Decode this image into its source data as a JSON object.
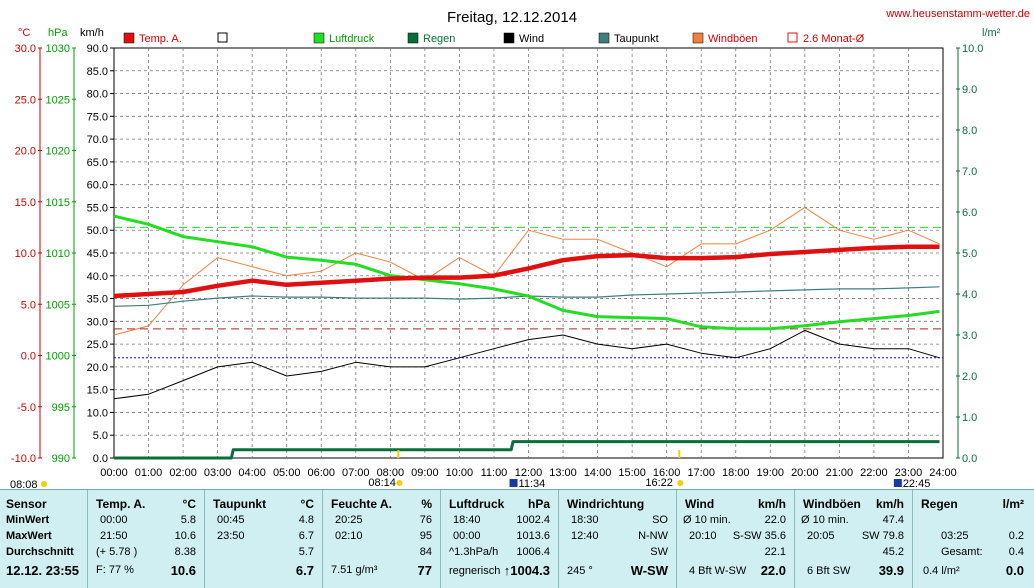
{
  "title": "Freitag, 12.12.2014",
  "site": "www.heusenstamm-wetter.de",
  "units": {
    "temp": "°C",
    "pressure": "hPa",
    "wind": "km/h",
    "rain": "l/m²"
  },
  "legend": [
    {
      "label": "Temp. A.",
      "color": "#e01010"
    },
    {
      "label": "",
      "color": "#ffffff"
    },
    {
      "label": "Luftdruck",
      "color": "#22dd22"
    },
    {
      "label": "Regen",
      "color": "#0a6e3a"
    },
    {
      "label": "Wind",
      "color": "#000000"
    },
    {
      "label": "Taupunkt",
      "color": "#3f7f7f"
    },
    {
      "label": "Windböen",
      "color": "#f08040"
    },
    {
      "label": "2.6 Monat-Ø",
      "color": "#e01010"
    }
  ],
  "chart_data": {
    "type": "line",
    "x_ticks": [
      "00:00",
      "01:00",
      "02:00",
      "03:00",
      "04:00",
      "05:00",
      "06:00",
      "07:00",
      "08:00",
      "09:00",
      "10:00",
      "11:00",
      "12:00",
      "13:00",
      "14:00",
      "15:00",
      "16:00",
      "17:00",
      "18:00",
      "19:00",
      "20:00",
      "21:00",
      "22:00",
      "23:00",
      "24:00"
    ],
    "axis_temp": {
      "ticks": [
        "30.0",
        "25.0",
        "20.0",
        "15.0",
        "10.0",
        "5.0",
        "0.0",
        "-5.0",
        "-10.0"
      ],
      "range": [
        -10,
        30
      ]
    },
    "axis_pressure": {
      "ticks": [
        "1030",
        "1025",
        "1020",
        "1015",
        "1010",
        "1005",
        "1000",
        "995",
        "990"
      ],
      "range": [
        990,
        1030
      ]
    },
    "axis_wind": {
      "ticks": [
        "90.0",
        "85.0",
        "80.0",
        "75.0",
        "70.0",
        "65.0",
        "60.0",
        "55.0",
        "50.0",
        "45.0",
        "40.0",
        "35.0",
        "30.0",
        "25.0",
        "20.0",
        "15.0",
        "10.0",
        "5.0",
        "0.0"
      ],
      "range": [
        0,
        90
      ]
    },
    "axis_rain": {
      "ticks": [
        "10.0",
        "9.0",
        "8.0",
        "7.0",
        "6.0",
        "5.0",
        "4.0",
        "3.0",
        "2.0",
        "1.0",
        "0.0"
      ],
      "range": [
        0,
        10
      ]
    },
    "sun_events": [
      "08:08",
      "08:14",
      "11:34",
      "16:22",
      "22:45"
    ],
    "reference_lines": {
      "temp_month_avg": 2.6,
      "pressure_ref": 1012.5,
      "wind_ref": 22
    },
    "series": [
      {
        "name": "Temp. A.",
        "axis": "temp",
        "x": [
          0,
          1,
          2,
          3,
          4,
          5,
          6,
          7,
          8,
          9,
          10,
          11,
          12,
          13,
          14,
          15,
          16,
          17,
          18,
          19,
          20,
          21,
          22,
          23,
          23.9
        ],
        "values": [
          5.8,
          6.0,
          6.2,
          6.8,
          7.3,
          6.9,
          7.1,
          7.3,
          7.5,
          7.6,
          7.6,
          7.8,
          8.5,
          9.3,
          9.7,
          9.8,
          9.5,
          9.5,
          9.6,
          9.9,
          10.1,
          10.3,
          10.5,
          10.6,
          10.6
        ]
      },
      {
        "name": "Taupunkt",
        "axis": "temp",
        "x": [
          0,
          1,
          2,
          3,
          4,
          5,
          6,
          7,
          8,
          9,
          10,
          11,
          12,
          13,
          14,
          15,
          16,
          17,
          18,
          19,
          20,
          21,
          22,
          23,
          23.9
        ],
        "values": [
          4.8,
          4.9,
          5.3,
          5.6,
          5.8,
          5.7,
          5.7,
          5.6,
          5.6,
          5.6,
          5.5,
          5.6,
          5.8,
          5.7,
          5.7,
          5.9,
          6.0,
          6.1,
          6.2,
          6.3,
          6.4,
          6.5,
          6.5,
          6.6,
          6.7
        ]
      },
      {
        "name": "Luftdruck",
        "axis": "pressure",
        "x": [
          0,
          1,
          2,
          3,
          4,
          5,
          6,
          7,
          8,
          9,
          10,
          11,
          12,
          13,
          14,
          15,
          16,
          17,
          18,
          19,
          20,
          21,
          22,
          23,
          23.9
        ],
        "values": [
          1013.6,
          1012.8,
          1011.6,
          1011.1,
          1010.6,
          1009.6,
          1009.3,
          1008.9,
          1007.8,
          1007.4,
          1007.0,
          1006.5,
          1005.8,
          1004.4,
          1003.8,
          1003.7,
          1003.6,
          1002.8,
          1002.6,
          1002.6,
          1002.9,
          1003.3,
          1003.6,
          1003.9,
          1004.3
        ]
      },
      {
        "name": "Regen",
        "axis": "rain",
        "x": [
          0,
          3.4,
          3.45,
          11.5,
          11.55,
          23.9
        ],
        "values": [
          0,
          0,
          0.2,
          0.2,
          0.4,
          0.4
        ]
      },
      {
        "name": "Wind",
        "axis": "wind",
        "x": [
          0,
          1,
          2,
          3,
          4,
          5,
          6,
          7,
          8,
          9,
          10,
          11,
          12,
          13,
          14,
          15,
          16,
          17,
          18,
          19,
          20,
          21,
          22,
          23,
          23.9
        ],
        "values": [
          13,
          14,
          17,
          20,
          21,
          18,
          19,
          21,
          20,
          20,
          22,
          24,
          26,
          27,
          25,
          24,
          25,
          23,
          22,
          24,
          28,
          25,
          24,
          24,
          22
        ]
      },
      {
        "name": "Windböen",
        "axis": "wind",
        "x": [
          0,
          1,
          2,
          3,
          4,
          5,
          6,
          7,
          8,
          9,
          10,
          11,
          12,
          13,
          14,
          15,
          16,
          17,
          18,
          19,
          20,
          21,
          22,
          23,
          23.9
        ],
        "values": [
          27,
          29,
          38,
          44,
          42,
          40,
          41,
          45,
          43,
          39,
          44,
          40,
          50,
          48,
          48,
          45,
          42,
          47,
          47,
          50,
          55,
          50,
          48,
          50,
          47
        ]
      }
    ]
  },
  "table": {
    "sensor": {
      "header": "Sensor",
      "rows": [
        "MinWert",
        "MaxWert",
        "Durchschnitt"
      ],
      "footer": "12.12. 23:55"
    },
    "temp": {
      "header": "Temp. A.",
      "unit": "°C",
      "min_time": "00:00",
      "min": "5.8",
      "max_time": "21:50",
      "max": "10.6",
      "avg_delta": "(+ 5.78 )",
      "avg": "8.38",
      "humidity": "F: 77 %",
      "current": "10.6"
    },
    "dew": {
      "header": "Taupunkt",
      "unit": "°C",
      "min_time": "00:45",
      "min": "4.8",
      "max_time": "23:50",
      "max": "6.7",
      "avg": "5.7",
      "current": "6.7"
    },
    "humidity": {
      "header": "Feuchte A.",
      "unit": "%",
      "min_time": "20:25",
      "min": "76",
      "max_time": "02:10",
      "max": "95",
      "avg": "84",
      "abs": "7.51 g/m³",
      "current": "77"
    },
    "pressure": {
      "header": "Luftdruck",
      "unit": "hPa",
      "min_time": "18:40",
      "min": "1002.4",
      "max_time": "00:00",
      "max": "1013.6",
      "trend": "^1.3hPa/h",
      "avg": "1006.4",
      "forecast": "regnerisch",
      "current": "↑1004.3"
    },
    "direction": {
      "header": "Windrichtung",
      "min_time": "18:30",
      "min": "SO",
      "max_time": "12:40",
      "max": "N-NW",
      "avg": "SW",
      "deg": "245 °",
      "current": "W-SW"
    },
    "wind": {
      "header": "Wind",
      "unit": "km/h",
      "r1a": "Ø 10 min.",
      "r1b": "22.0",
      "r2a": "20:10",
      "r2b": "S-SW 35.6",
      "r3b": "22.1",
      "r4a": "4 Bft W-SW",
      "current": "22.0"
    },
    "gust": {
      "header": "Windböen",
      "unit": "km/h",
      "r1a": "Ø 10 min.",
      "r1b": "47.4",
      "r2a": "20:05",
      "r2b": "SW 79.8",
      "r3b": "45.2",
      "r4a": "6 Bft SW",
      "current": "39.9"
    },
    "rain": {
      "header": "Regen",
      "unit": "l/m²",
      "r2a": "03:25",
      "r2b": "0.2",
      "r3a": "Gesamt:",
      "r3b": "0.4",
      "r4a": "0.4 l/m²",
      "current": "0.0"
    }
  }
}
